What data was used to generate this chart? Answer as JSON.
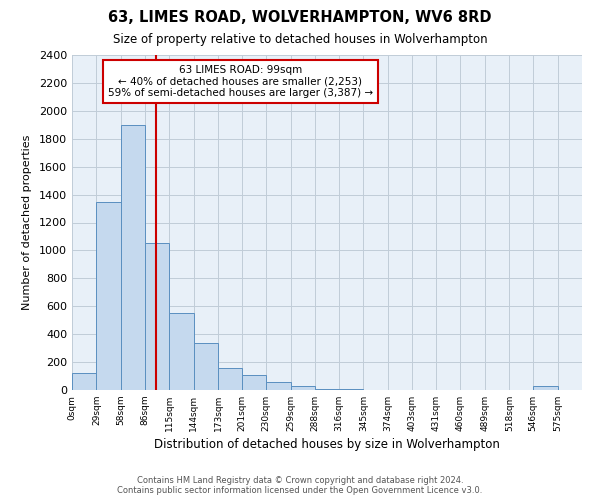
{
  "title": "63, LIMES ROAD, WOLVERHAMPTON, WV6 8RD",
  "subtitle": "Size of property relative to detached houses in Wolverhampton",
  "xlabel": "Distribution of detached houses by size in Wolverhampton",
  "ylabel": "Number of detached properties",
  "bin_labels": [
    "0sqm",
    "29sqm",
    "58sqm",
    "86sqm",
    "115sqm",
    "144sqm",
    "173sqm",
    "201sqm",
    "230sqm",
    "259sqm",
    "288sqm",
    "316sqm",
    "345sqm",
    "374sqm",
    "403sqm",
    "431sqm",
    "460sqm",
    "489sqm",
    "518sqm",
    "546sqm",
    "575sqm"
  ],
  "bin_edges": [
    0,
    29,
    58,
    86,
    115,
    144,
    173,
    201,
    230,
    259,
    288,
    316,
    345,
    374,
    403,
    431,
    460,
    489,
    518,
    546,
    575
  ],
  "bar_heights": [
    120,
    1350,
    1900,
    1050,
    550,
    340,
    160,
    110,
    60,
    30,
    10,
    5,
    3,
    2,
    1,
    0,
    0,
    0,
    0,
    30
  ],
  "bar_color": "#c5d9ee",
  "bar_edge_color": "#5a8fc0",
  "bg_color": "#e8f0f8",
  "ylim": [
    0,
    2400
  ],
  "yticks": [
    0,
    200,
    400,
    600,
    800,
    1000,
    1200,
    1400,
    1600,
    1800,
    2000,
    2200,
    2400
  ],
  "property_line_x": 99,
  "property_line_color": "#cc0000",
  "annotation_title": "63 LIMES ROAD: 99sqm",
  "annotation_line1": "← 40% of detached houses are smaller (2,253)",
  "annotation_line2": "59% of semi-detached houses are larger (3,387) →",
  "annotation_box_color": "#ffffff",
  "annotation_box_edge_color": "#cc0000",
  "footer_line1": "Contains HM Land Registry data © Crown copyright and database right 2024.",
  "footer_line2": "Contains public sector information licensed under the Open Government Licence v3.0.",
  "outer_bg_color": "#ffffff",
  "grid_color": "#c0ccd8"
}
